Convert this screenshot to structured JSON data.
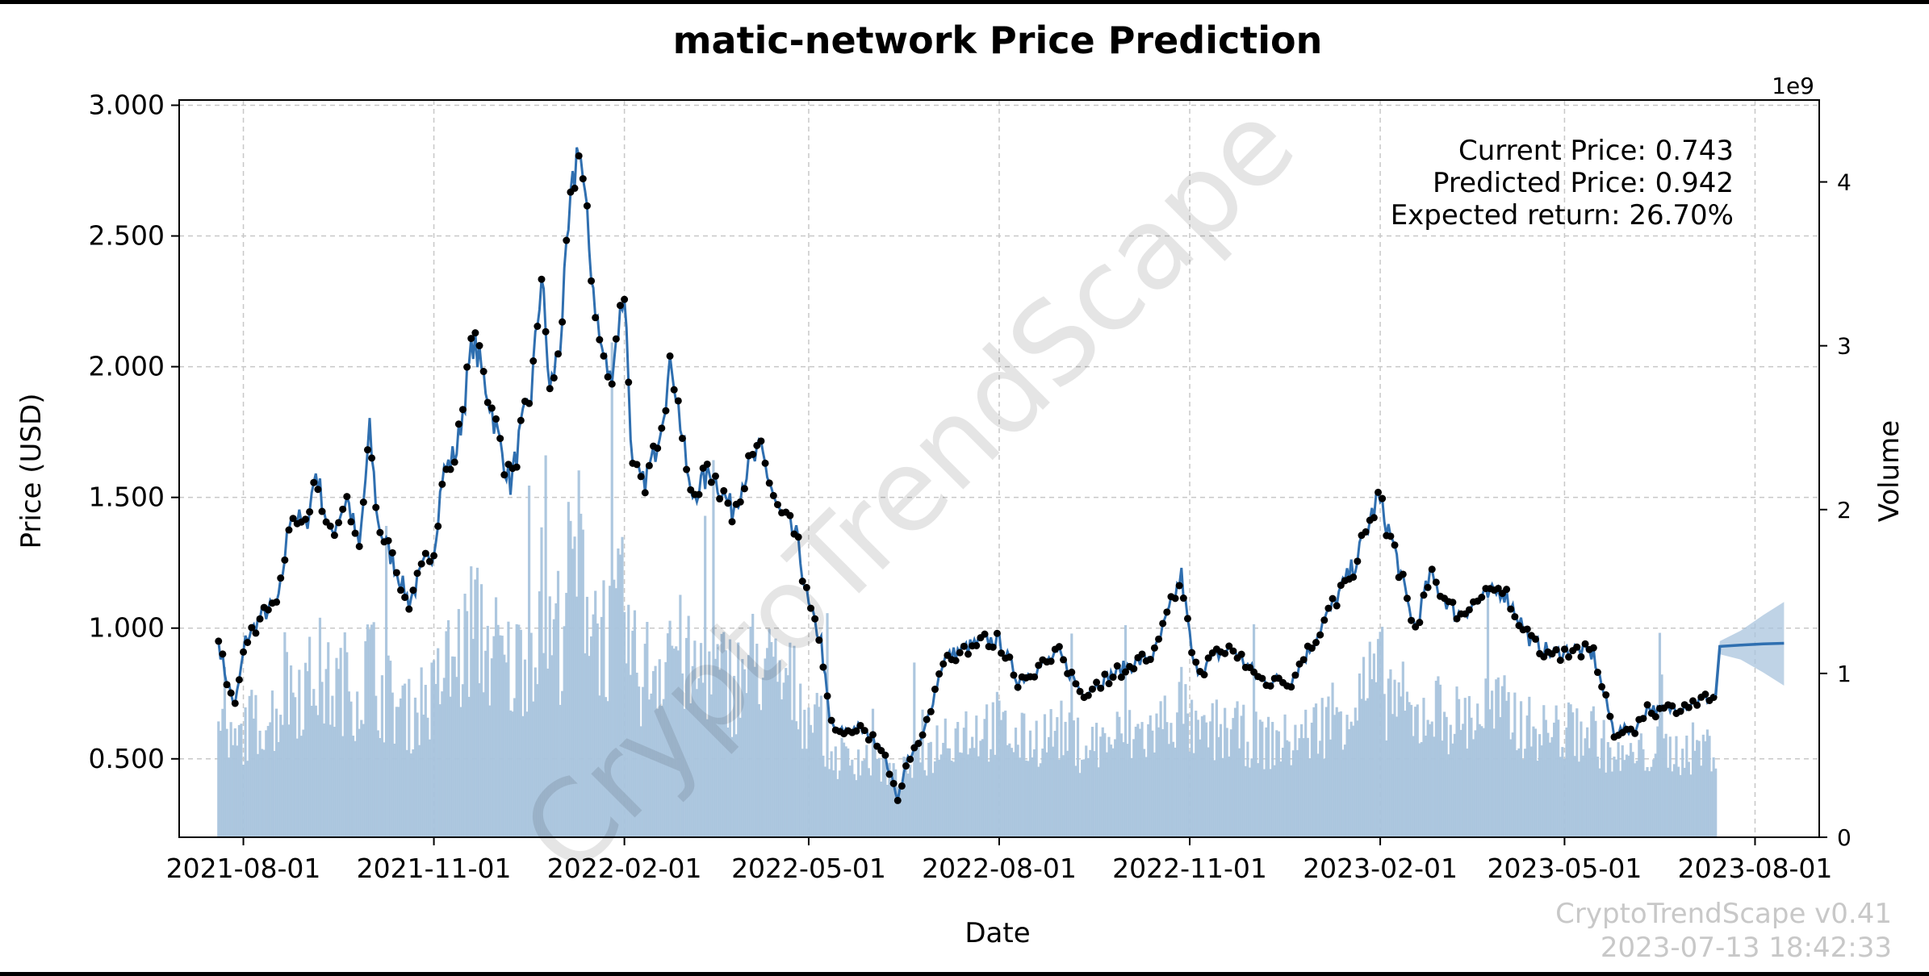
{
  "chart_data": {
    "type": "line",
    "title": "matic-network Price Prediction",
    "xlabel": "Date",
    "ylabel": "Price (USD)",
    "y2label": "Volume",
    "y2_offset_label": "1e9",
    "xlim": [
      "2021-07-01",
      "2023-09-01"
    ],
    "ylim": [
      0.2,
      3.02
    ],
    "y2lim": [
      0,
      4.5
    ],
    "x_ticks": [
      "2021-08-01",
      "2021-11-01",
      "2022-02-01",
      "2022-05-01",
      "2022-08-01",
      "2022-11-01",
      "2023-02-01",
      "2023-05-01",
      "2023-08-01"
    ],
    "y_ticks": [
      "0.500",
      "1.000",
      "1.500",
      "2.000",
      "2.500",
      "3.000"
    ],
    "y2_ticks": [
      "0",
      "1",
      "2",
      "3",
      "4"
    ],
    "grid": true,
    "colors": {
      "price_line": "#2f6fb0",
      "points": "#000000",
      "volume": "#a9c4dd",
      "band": "#a9c4dd"
    },
    "series": [
      {
        "name": "price",
        "style": "line+points",
        "x": [
          "2021-07-20",
          "2021-07-24",
          "2021-07-28",
          "2021-08-02",
          "2021-08-10",
          "2021-08-18",
          "2021-08-24",
          "2021-08-31",
          "2021-09-05",
          "2021-09-12",
          "2021-09-20",
          "2021-09-26",
          "2021-10-01",
          "2021-10-05",
          "2021-10-10",
          "2021-10-20",
          "2021-10-28",
          "2021-11-01",
          "2021-11-05",
          "2021-11-12",
          "2021-11-20",
          "2021-11-27",
          "2021-12-03",
          "2021-12-08",
          "2021-12-13",
          "2021-12-18",
          "2021-12-23",
          "2021-12-27",
          "2022-01-01",
          "2022-01-06",
          "2022-01-10",
          "2022-01-15",
          "2022-01-20",
          "2022-01-25",
          "2022-02-01",
          "2022-02-05",
          "2022-02-10",
          "2022-02-15",
          "2022-02-24",
          "2022-03-05",
          "2022-03-15",
          "2022-03-25",
          "2022-04-01",
          "2022-04-08",
          "2022-04-16",
          "2022-04-25",
          "2022-05-01",
          "2022-05-07",
          "2022-05-11",
          "2022-05-15",
          "2022-05-25",
          "2022-06-05",
          "2022-06-13",
          "2022-06-18",
          "2022-06-25",
          "2022-07-05",
          "2022-07-15",
          "2022-07-25",
          "2022-08-01",
          "2022-08-10",
          "2022-08-20",
          "2022-08-30",
          "2022-09-10",
          "2022-09-20",
          "2022-10-01",
          "2022-10-15",
          "2022-10-28",
          "2022-11-03",
          "2022-11-08",
          "2022-11-14",
          "2022-11-22",
          "2022-12-05",
          "2022-12-20",
          "2022-12-31",
          "2023-01-10",
          "2023-01-20",
          "2023-01-31",
          "2023-02-08",
          "2023-02-14",
          "2023-02-18",
          "2023-02-25",
          "2023-03-10",
          "2023-03-20",
          "2023-04-01",
          "2023-04-15",
          "2023-04-25",
          "2023-05-05",
          "2023-05-15",
          "2023-05-25",
          "2023-06-05",
          "2023-06-10",
          "2023-06-15",
          "2023-06-25",
          "2023-07-05",
          "2023-07-13"
        ],
        "values": [
          0.95,
          0.8,
          0.7,
          0.95,
          1.05,
          1.1,
          1.45,
          1.38,
          1.6,
          1.35,
          1.5,
          1.3,
          1.75,
          1.4,
          1.3,
          1.1,
          1.25,
          1.3,
          1.58,
          1.68,
          2.1,
          1.9,
          1.7,
          1.55,
          1.75,
          1.9,
          2.35,
          1.9,
          2.1,
          2.6,
          2.88,
          2.45,
          2.1,
          1.95,
          2.3,
          1.6,
          1.55,
          1.65,
          2.02,
          1.5,
          1.6,
          1.45,
          1.6,
          1.68,
          1.45,
          1.35,
          1.08,
          0.95,
          0.65,
          0.6,
          0.62,
          0.55,
          0.35,
          0.5,
          0.58,
          0.88,
          0.92,
          0.95,
          0.95,
          0.8,
          0.85,
          0.9,
          0.75,
          0.8,
          0.85,
          0.9,
          1.2,
          0.85,
          0.85,
          0.9,
          0.92,
          0.8,
          0.8,
          0.95,
          1.1,
          1.25,
          1.5,
          1.3,
          1.1,
          1.0,
          1.2,
          1.05,
          1.1,
          1.15,
          0.95,
          0.9,
          0.92,
          0.9,
          0.6,
          0.62,
          0.7,
          0.68,
          0.7,
          0.72,
          0.743
        ]
      },
      {
        "name": "prediction",
        "style": "line+band",
        "x": [
          "2023-07-13",
          "2023-07-15",
          "2023-07-25",
          "2023-08-05",
          "2023-08-15"
        ],
        "values": [
          0.743,
          0.93,
          0.935,
          0.94,
          0.942
        ],
        "upper": [
          0.743,
          0.95,
          0.99,
          1.05,
          1.1
        ],
        "lower": [
          0.743,
          0.9,
          0.88,
          0.83,
          0.78
        ]
      }
    ],
    "volume_daily_billions_seed": 7
  },
  "annotations": {
    "current_price": "Current Price: 0.743",
    "predicted_price": "Predicted Price: 0.942",
    "expected_return": "Expected return: 26.70%"
  },
  "watermark": "CryptoTrendScape",
  "footer": {
    "version": "CryptoTrendScape v0.41",
    "timestamp": "2023-07-13 18:42:33"
  }
}
